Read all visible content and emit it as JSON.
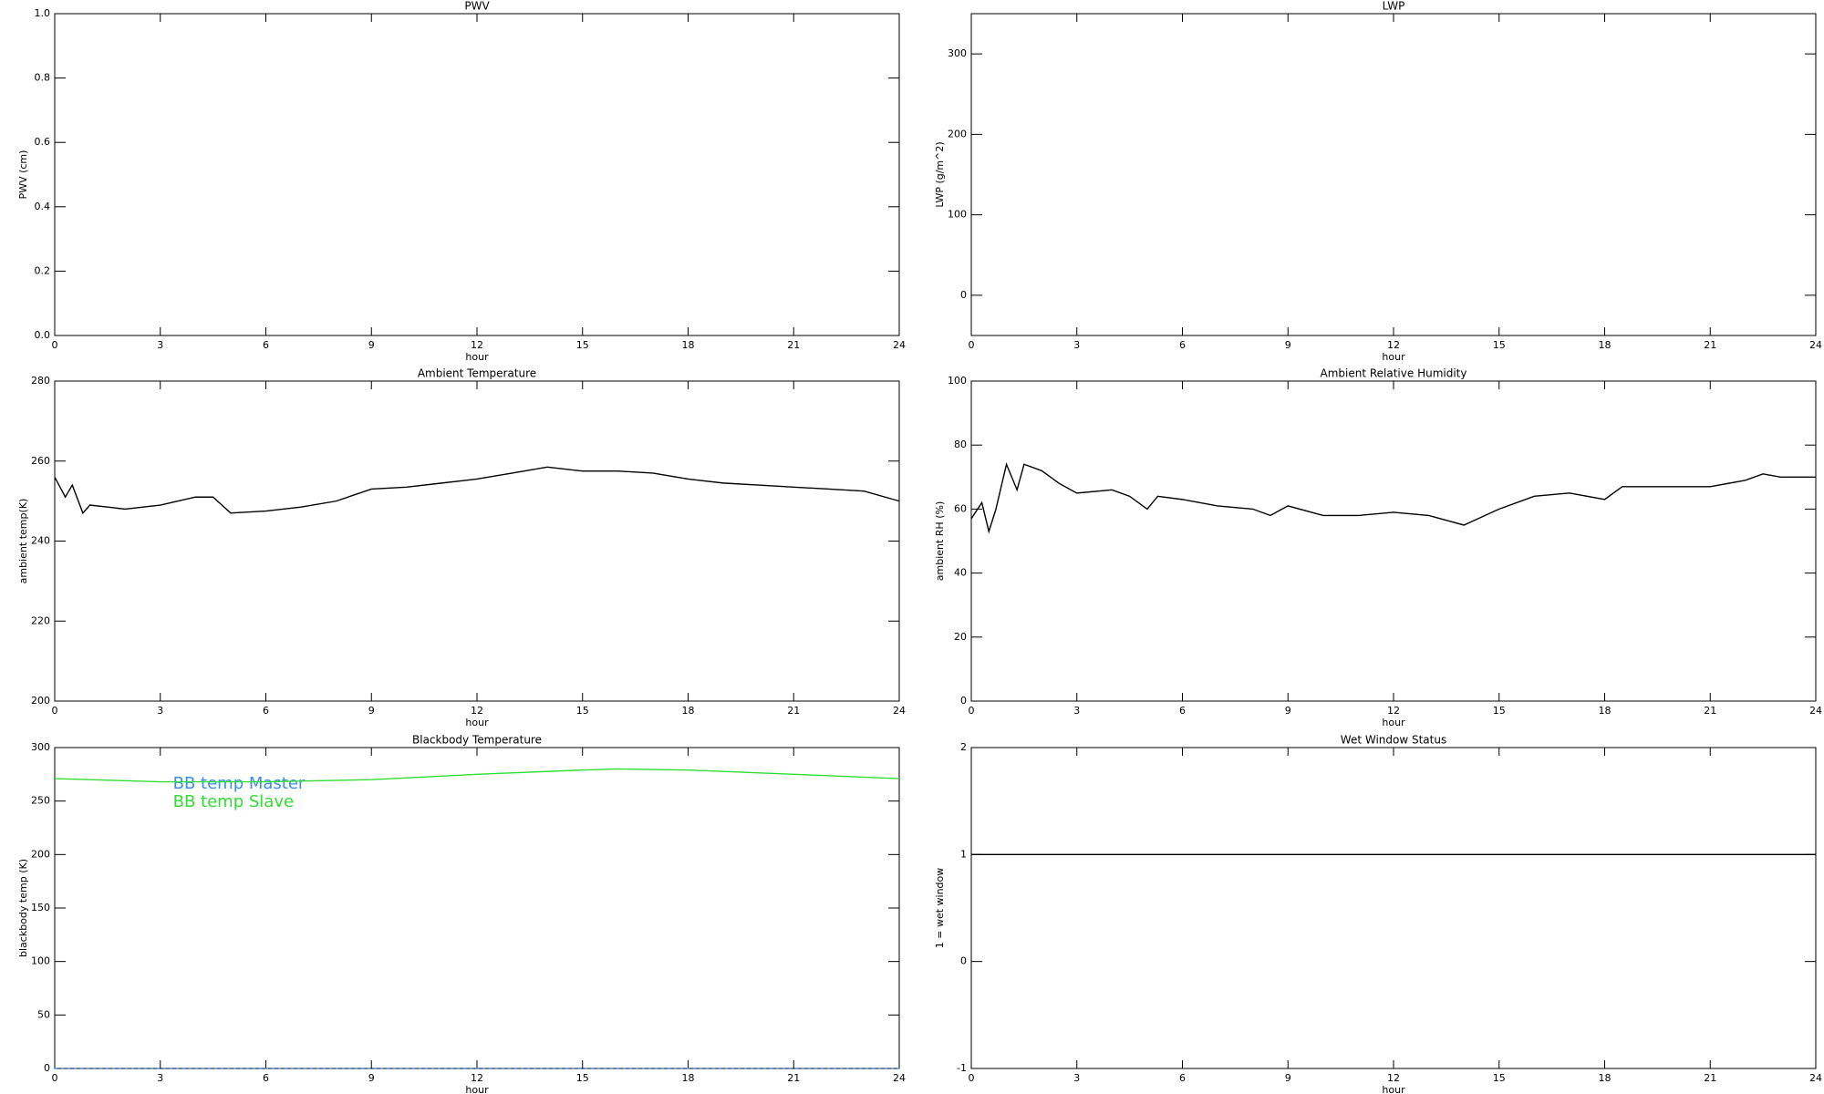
{
  "chart_data": [
    {
      "type": "line",
      "title": "PWV",
      "xlabel": "hour",
      "ylabel": "PWV (cm)",
      "xlim": [
        0,
        24
      ],
      "xticks": [
        0,
        3,
        6,
        9,
        12,
        15,
        18,
        21,
        24
      ],
      "ylim": [
        0,
        1
      ],
      "yticks": [
        {
          "value": 0,
          "label": "0.0"
        },
        0.2,
        0.4,
        0.6,
        0.8,
        {
          "value": 1,
          "label": "1.0"
        }
      ]
    },
    {
      "type": "line",
      "title": "LWP",
      "xlabel": "hour",
      "ylabel": "LWP (g/m^2)",
      "xlim": [
        0,
        24
      ],
      "xticks": [
        0,
        3,
        6,
        9,
        12,
        15,
        18,
        21,
        24
      ],
      "ylim": [
        -50,
        350
      ],
      "yticks": [
        0,
        100,
        200,
        300
      ]
    },
    {
      "type": "line",
      "title": "Ambient Temperature",
      "xlabel": "hour",
      "ylabel": "ambient temp(K)",
      "xlim": [
        0,
        24
      ],
      "xticks": [
        0,
        3,
        6,
        9,
        12,
        15,
        18,
        21,
        24
      ],
      "ylim": [
        200,
        280
      ],
      "yticks": [
        200,
        220,
        240,
        260,
        280
      ],
      "x": [
        0,
        0.3,
        0.5,
        0.8,
        1,
        2,
        3,
        4,
        4.5,
        5,
        6,
        7,
        8,
        9,
        10,
        11,
        12,
        13,
        14,
        15,
        16,
        17,
        18,
        19,
        20,
        21,
        22,
        23,
        24
      ],
      "series": [
        {
          "color": "#000000",
          "values": [
            256,
            251,
            254,
            247,
            249,
            248,
            249,
            251,
            251,
            247,
            247.5,
            248.5,
            250,
            253,
            253.5,
            254.5,
            255.5,
            257,
            258.5,
            257.5,
            257.5,
            257,
            255.5,
            254.5,
            254,
            253.5,
            253,
            252.5,
            250
          ]
        }
      ]
    },
    {
      "type": "line",
      "title": "Ambient Relative Humidity",
      "xlabel": "hour",
      "ylabel": "ambient RH (%)",
      "xlim": [
        0,
        24
      ],
      "xticks": [
        0,
        3,
        6,
        9,
        12,
        15,
        18,
        21,
        24
      ],
      "ylim": [
        0,
        100
      ],
      "yticks": [
        0,
        20,
        40,
        60,
        80,
        100
      ],
      "x": [
        0,
        0.3,
        0.5,
        0.7,
        1,
        1.3,
        1.5,
        2,
        2.5,
        3,
        4,
        4.5,
        5,
        5.3,
        6,
        7,
        8,
        8.5,
        9,
        10,
        11,
        12,
        13,
        14,
        15,
        16,
        17,
        18,
        18.5,
        19,
        20,
        21,
        22,
        22.5,
        23,
        24
      ],
      "series": [
        {
          "color": "#000000",
          "values": [
            57,
            62,
            53,
            60,
            74,
            66,
            74,
            72,
            68,
            65,
            66,
            64,
            60,
            64,
            63,
            61,
            60,
            58,
            61,
            58,
            58,
            59,
            58,
            55,
            60,
            64,
            65,
            63,
            67,
            67,
            67,
            67,
            69,
            71,
            70,
            70
          ]
        }
      ]
    },
    {
      "type": "line",
      "title": "Blackbody Temperature",
      "xlabel": "hour",
      "ylabel": "blackbody temp (K)",
      "xlim": [
        0,
        24
      ],
      "xticks": [
        0,
        3,
        6,
        9,
        12,
        15,
        18,
        21,
        24
      ],
      "ylim": [
        0,
        300
      ],
      "yticks": [
        0,
        50,
        100,
        150,
        200,
        250,
        300
      ],
      "legend": "upper left",
      "x": [
        0,
        3,
        6,
        9,
        12,
        15,
        16,
        18,
        21,
        24
      ],
      "series": [
        {
          "name": "BB temp Master",
          "color": "#3a8ee8",
          "values": [
            0,
            0,
            0,
            0,
            0,
            0,
            0,
            0,
            0,
            0
          ]
        },
        {
          "name": "BB temp Slave",
          "color": "#33dd33",
          "values": [
            271,
            268,
            268,
            270,
            275,
            279,
            280,
            279,
            275,
            271
          ]
        }
      ]
    },
    {
      "type": "line",
      "title": "Wet Window Status",
      "xlabel": "hour",
      "ylabel": "1 = wet window",
      "xlim": [
        0,
        24
      ],
      "xticks": [
        0,
        3,
        6,
        9,
        12,
        15,
        18,
        21,
        24
      ],
      "ylim": [
        -1,
        2
      ],
      "yticks": [
        -1,
        0,
        1,
        2
      ],
      "x": [
        0,
        24
      ],
      "series": [
        {
          "color": "#000000",
          "values": [
            1,
            1
          ]
        }
      ]
    }
  ]
}
